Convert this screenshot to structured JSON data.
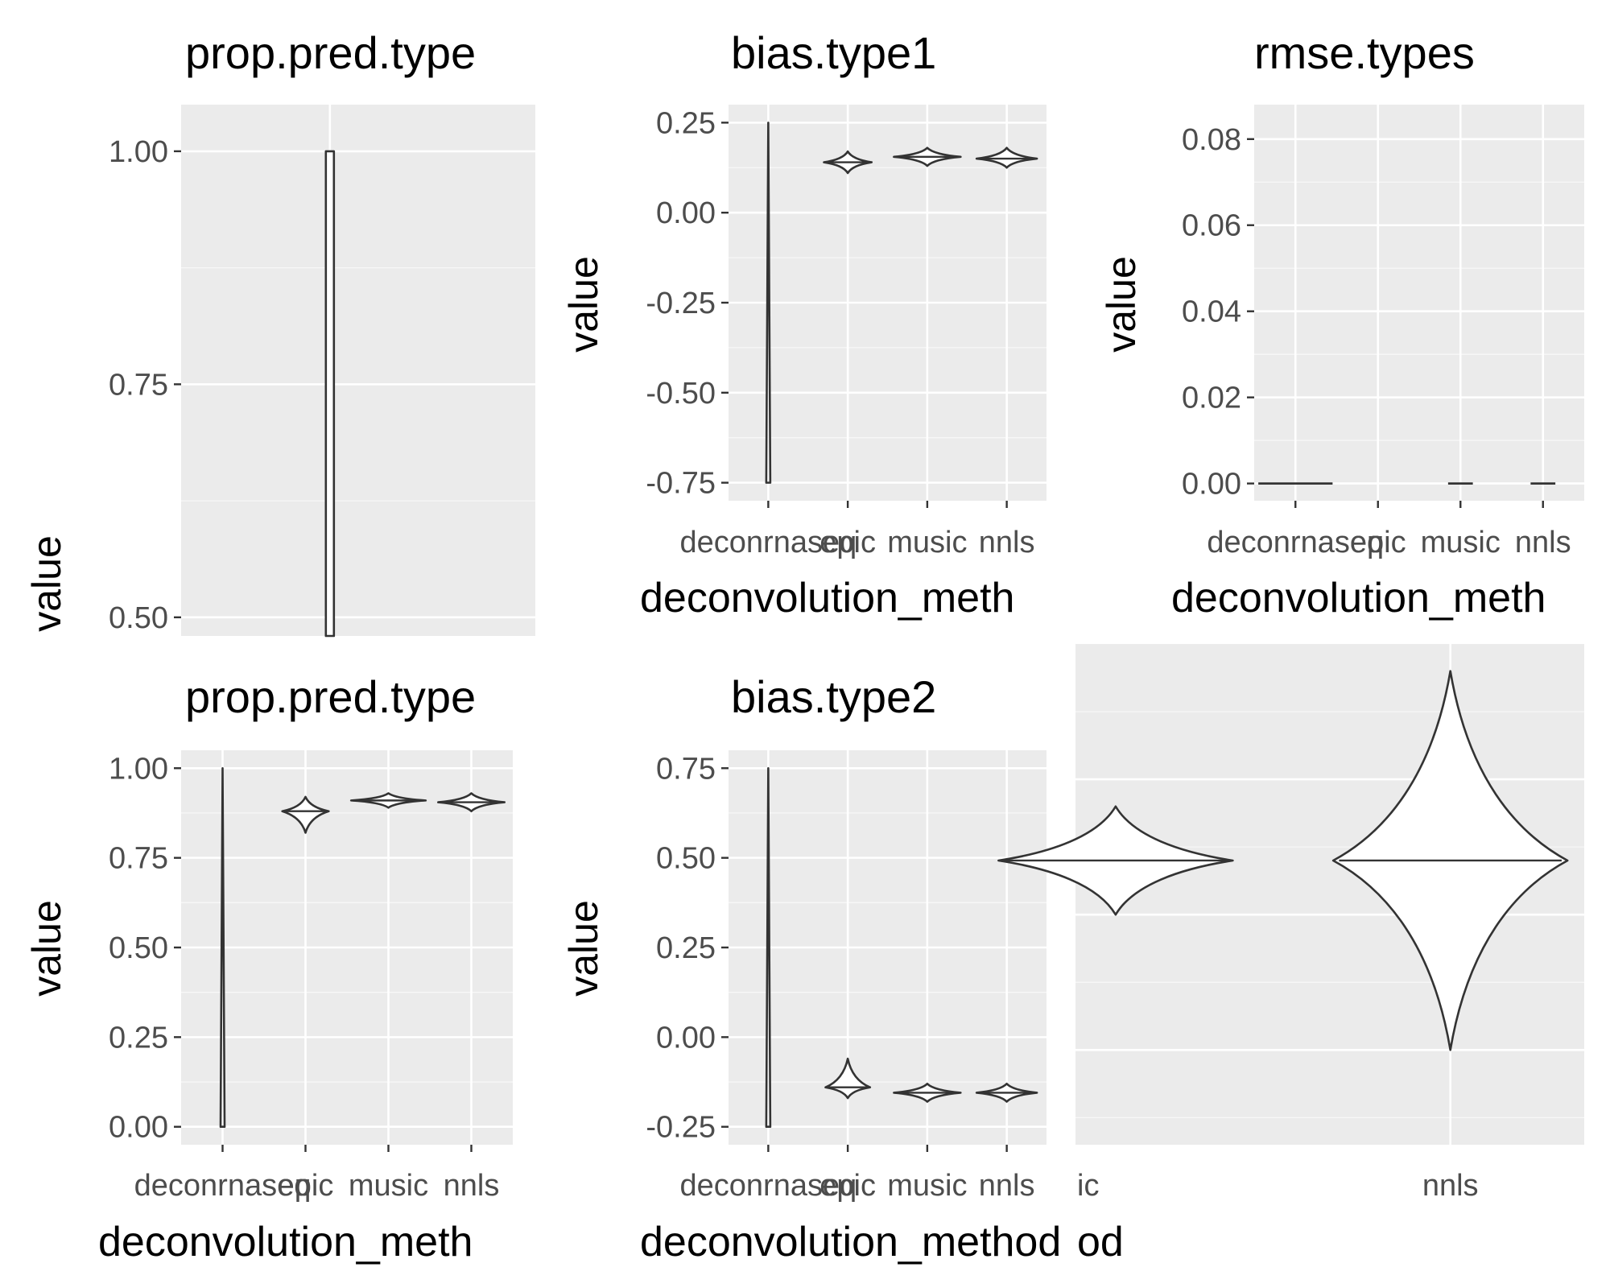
{
  "chart_data": [
    {
      "panel": "prop.pred.type1",
      "type": "violin",
      "title": "prop.pred.type",
      "xlabel": "",
      "ylabel": "value",
      "ylim": [
        0.48,
        1.05
      ],
      "y_ticks": [
        "0.50",
        "0.75",
        "1.00"
      ],
      "tick_values": [
        0.5,
        0.75,
        1.0
      ],
      "categories": [],
      "violins": [
        {
          "center": 0.42,
          "ymin": 0.48,
          "ymax": 1.0,
          "median": 0.75,
          "halfw": 0.012,
          "shape": "hollow"
        }
      ],
      "x_grid": [
        0.42
      ]
    },
    {
      "panel": "bias.type1",
      "type": "violin",
      "title": "bias.type1",
      "xlabel": "deconvolution_meth",
      "ylabel": "value",
      "ylim": [
        -0.8,
        0.3
      ],
      "y_ticks": [
        "-0.75",
        "-0.50",
        "-0.25",
        "0.00",
        "0.25"
      ],
      "tick_values": [
        -0.75,
        -0.5,
        -0.25,
        0.0,
        0.25
      ],
      "categories": [
        "deconrnaseq",
        "epic",
        "music",
        "nnls"
      ],
      "violins": [
        {
          "center": 1,
          "ymin": -0.75,
          "ymax": 0.25,
          "median": 0.0,
          "halfw": 0.02,
          "shape": "line"
        },
        {
          "center": 2,
          "ymin": 0.11,
          "ymax": 0.17,
          "median": 0.14,
          "halfw": 0.3,
          "shape": "diamond"
        },
        {
          "center": 3,
          "ymin": 0.13,
          "ymax": 0.18,
          "median": 0.155,
          "halfw": 0.42,
          "shape": "diamond"
        },
        {
          "center": 4,
          "ymin": 0.125,
          "ymax": 0.18,
          "median": 0.15,
          "halfw": 0.38,
          "shape": "diamond"
        }
      ]
    },
    {
      "panel": "rmse.types",
      "type": "violin",
      "title": "rmse.types",
      "xlabel": "deconvolution_meth",
      "ylabel": "value",
      "ylim": [
        -0.004,
        0.088
      ],
      "y_ticks": [
        "0.00",
        "0.02",
        "0.04",
        "0.06",
        "0.08"
      ],
      "tick_values": [
        0.0,
        0.02,
        0.04,
        0.06,
        0.08
      ],
      "categories": [
        "deconrnaseq",
        "epic",
        "music",
        "nnls"
      ],
      "violins": [
        {
          "center": 1,
          "ymin": 0.0,
          "ymax": 0.0,
          "median": 0.0,
          "halfw": 0.45,
          "shape": "flat"
        },
        {
          "center": 3,
          "ymin": 0.0,
          "ymax": 0.0,
          "median": 0.0,
          "halfw": 0.15,
          "shape": "flat"
        },
        {
          "center": 4,
          "ymin": 0.0,
          "ymax": 0.0,
          "median": 0.0,
          "halfw": 0.15,
          "shape": "flat"
        }
      ]
    },
    {
      "panel": "prop.pred.type2",
      "type": "violin",
      "title": "prop.pred.type",
      "xlabel": "deconvolution_meth",
      "ylabel": "value",
      "ylim": [
        -0.05,
        1.05
      ],
      "y_ticks": [
        "0.00",
        "0.25",
        "0.50",
        "0.75",
        "1.00"
      ],
      "tick_values": [
        0.0,
        0.25,
        0.5,
        0.75,
        1.0
      ],
      "categories": [
        "deconrnaseq",
        "epic",
        "music",
        "nnls"
      ],
      "violins": [
        {
          "center": 1,
          "ymin": 0.0,
          "ymax": 1.0,
          "median": 0.5,
          "halfw": 0.02,
          "shape": "line"
        },
        {
          "center": 2,
          "ymin": 0.82,
          "ymax": 0.92,
          "median": 0.88,
          "halfw": 0.28,
          "shape": "diamond"
        },
        {
          "center": 3,
          "ymin": 0.89,
          "ymax": 0.93,
          "median": 0.91,
          "halfw": 0.45,
          "shape": "diamond"
        },
        {
          "center": 4,
          "ymin": 0.88,
          "ymax": 0.93,
          "median": 0.905,
          "halfw": 0.4,
          "shape": "diamond"
        }
      ]
    },
    {
      "panel": "bias.type2",
      "type": "violin",
      "title": "bias.type2",
      "xlabel": "deconvolution_method",
      "ylabel": "value",
      "ylim": [
        -0.3,
        0.8
      ],
      "y_ticks": [
        "-0.25",
        "0.00",
        "0.25",
        "0.50",
        "0.75"
      ],
      "tick_values": [
        -0.25,
        0.0,
        0.25,
        0.5,
        0.75
      ],
      "categories": [
        "deconrnaseq",
        "epic",
        "music",
        "nnls"
      ],
      "violins": [
        {
          "center": 1,
          "ymin": -0.25,
          "ymax": 0.75,
          "median": 0.0,
          "halfw": 0.02,
          "shape": "line"
        },
        {
          "center": 2,
          "ymin": -0.17,
          "ymax": -0.06,
          "median": -0.14,
          "halfw": 0.28,
          "shape": "diamond"
        },
        {
          "center": 3,
          "ymin": -0.18,
          "ymax": -0.13,
          "median": -0.155,
          "halfw": 0.42,
          "shape": "diamond"
        },
        {
          "center": 4,
          "ymin": -0.18,
          "ymax": -0.13,
          "median": -0.155,
          "halfw": 0.38,
          "shape": "diamond"
        }
      ]
    },
    {
      "panel": "zoomed",
      "type": "violin",
      "title": "",
      "xlabel": "",
      "ylabel": "",
      "ylim": [
        -0.035,
        0.15
      ],
      "y_ticks": [],
      "tick_values": [
        0.0,
        0.05,
        0.1
      ],
      "categories": [
        "ic",
        "nnls"
      ],
      "violins": [
        {
          "center": 0,
          "ymin": 0.05,
          "ymax": 0.09,
          "median": 0.07,
          "halfw": 0.35,
          "shape": "diamond"
        },
        {
          "center": 1,
          "ymin": 0.0,
          "ymax": 0.14,
          "median": 0.07,
          "halfw": 0.35,
          "shape": "diamond"
        }
      ],
      "x_grid": [
        1
      ]
    }
  ]
}
